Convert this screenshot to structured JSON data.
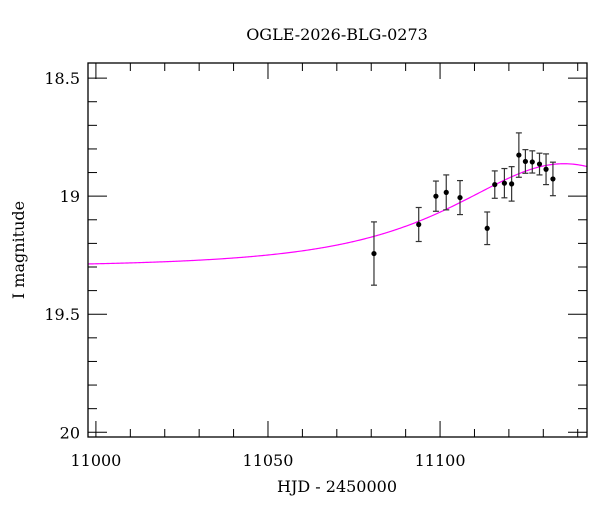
{
  "chart_data": {
    "type": "scatter",
    "title": "OGLE-2026-BLG-0273",
    "xlabel": "HJD - 2450000",
    "ylabel": "I magnitude",
    "xlim": [
      10997.7,
      11142.7
    ],
    "ylim": [
      20.02,
      18.436
    ],
    "y_inverted": true,
    "grid": false,
    "x_ticks": [
      11000,
      11050,
      11100
    ],
    "x_tick_labels": [
      "11000",
      "11050",
      "11100"
    ],
    "x_minor_step": 10,
    "y_ticks": [
      18.5,
      19,
      19.5,
      20
    ],
    "y_tick_labels": [
      "18.5",
      "19",
      "19.5",
      "20"
    ],
    "y_minor_step": 0.1,
    "points": {
      "color": "#000000",
      "x": [
        11080.8,
        11093.8,
        11098.8,
        11101.8,
        11105.8,
        11113.7,
        11115.9,
        11118.7,
        11120.8,
        11122.9,
        11124.8,
        11126.8,
        11128.9,
        11130.8,
        11132.8
      ],
      "y": [
        19.243,
        19.12,
        19.0,
        18.984,
        19.006,
        19.136,
        18.951,
        18.945,
        18.948,
        18.826,
        18.853,
        18.855,
        18.864,
        18.886,
        18.927
      ],
      "err": [
        0.134,
        0.072,
        0.064,
        0.074,
        0.072,
        0.069,
        0.058,
        0.062,
        0.073,
        0.094,
        0.05,
        0.047,
        0.046,
        0.065,
        0.071
      ]
    },
    "model": {
      "type": "line",
      "color": "#ff00ff",
      "t0": 11136,
      "tE": 43,
      "u0": 0.83,
      "baseline_mag": 19.3
    }
  }
}
